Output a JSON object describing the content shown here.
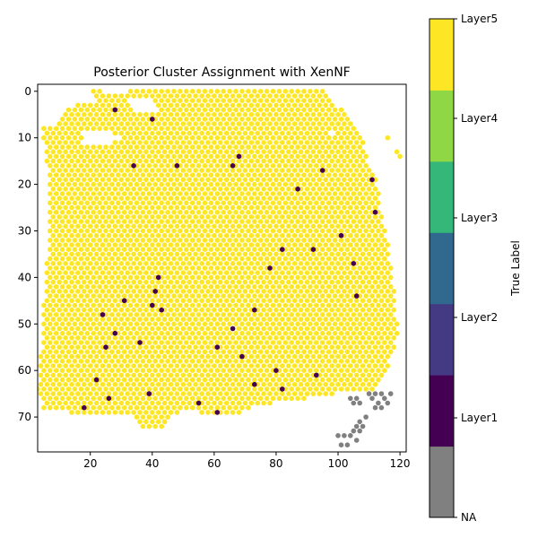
{
  "chart_data": {
    "type": "scatter",
    "title": "Posterior Cluster Assignment with XenNF",
    "xlabel": "",
    "ylabel": "",
    "xlim": [
      3,
      122
    ],
    "ylim": [
      77.5,
      -1.5
    ],
    "y_inverted": true,
    "xticks": [
      20,
      40,
      60,
      80,
      100,
      120
    ],
    "yticks": [
      0,
      10,
      20,
      30,
      40,
      50,
      60,
      70
    ],
    "grid": false,
    "marker_color_dominant": "#fde725",
    "colorbar": {
      "label": "True Label",
      "ticks": [
        "NA",
        "Layer1",
        "Layer2",
        "Layer3",
        "Layer4",
        "Layer5"
      ],
      "colors": [
        "#808080",
        "#440154",
        "#443983",
        "#31688e",
        "#35b779",
        "#8fd744",
        "#fde725"
      ]
    },
    "series": [
      {
        "label": "Layer5",
        "color": "#fde725",
        "description_points": "dense hexagonal grid of spots filling tissue region x≈5–120, y≈0–73"
      },
      {
        "label": "Layer1",
        "color": "#440154",
        "points": [
          [
            28,
            4
          ],
          [
            40,
            6
          ],
          [
            68,
            14
          ],
          [
            34,
            16
          ],
          [
            48,
            16
          ],
          [
            66,
            16
          ],
          [
            95,
            17
          ],
          [
            111,
            19
          ],
          [
            87,
            21
          ],
          [
            112,
            26
          ],
          [
            101,
            31
          ],
          [
            82,
            34
          ],
          [
            92,
            34
          ],
          [
            105,
            37
          ],
          [
            78,
            38
          ],
          [
            42,
            40
          ],
          [
            41,
            43
          ],
          [
            106,
            44
          ],
          [
            31,
            45
          ],
          [
            40,
            46
          ],
          [
            43,
            47
          ],
          [
            73,
            47
          ],
          [
            24,
            48
          ],
          [
            66,
            51
          ],
          [
            28,
            52
          ],
          [
            36,
            54
          ],
          [
            25,
            55
          ],
          [
            61,
            55
          ],
          [
            69,
            57
          ],
          [
            80,
            60
          ],
          [
            93,
            61
          ],
          [
            22,
            62
          ],
          [
            73,
            63
          ],
          [
            82,
            64
          ],
          [
            39,
            65
          ],
          [
            26,
            66
          ],
          [
            55,
            67
          ],
          [
            18,
            68
          ],
          [
            61,
            69
          ]
        ]
      },
      {
        "label": "NA",
        "color": "#808080",
        "points": [
          [
            104,
            66
          ],
          [
            106,
            66
          ],
          [
            110,
            65
          ],
          [
            112,
            65
          ],
          [
            114,
            65
          ],
          [
            117,
            65
          ],
          [
            105,
            67
          ],
          [
            107,
            67
          ],
          [
            111,
            66
          ],
          [
            113,
            67
          ],
          [
            115,
            66
          ],
          [
            116,
            67
          ],
          [
            112,
            68
          ],
          [
            114,
            68
          ],
          [
            109,
            70
          ],
          [
            107,
            71
          ],
          [
            108,
            72
          ],
          [
            106,
            72
          ],
          [
            105,
            73
          ],
          [
            107,
            73
          ],
          [
            100,
            74
          ],
          [
            102,
            74
          ],
          [
            104,
            74
          ],
          [
            106,
            75
          ],
          [
            101,
            76
          ],
          [
            103,
            76
          ]
        ]
      }
    ]
  }
}
